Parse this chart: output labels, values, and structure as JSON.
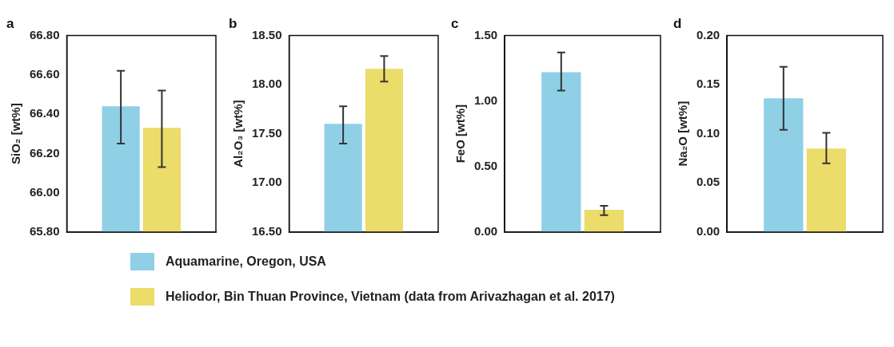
{
  "chart_data": [
    {
      "type": "bar",
      "title": "a",
      "ylabel": "SiO₂ [wt%]",
      "categories": [
        null
      ],
      "legend": "bottom",
      "ylim": [
        65.8,
        66.8
      ],
      "yticks": [
        {
          "value": 65.8,
          "label": "65.80"
        },
        {
          "value": 66,
          "label": "66.00"
        },
        {
          "value": 66.2,
          "label": "66.20"
        },
        {
          "value": 66.4,
          "label": "66.40"
        },
        {
          "value": 66.6,
          "label": "66.60"
        },
        {
          "value": 66.8,
          "label": "66.80"
        }
      ],
      "grid": false,
      "series": [
        {
          "name": "Aquamarine, Oregon, USA",
          "color": "#8fd0e6",
          "values": [
            66.44
          ],
          "errors": [
            [
              66.25,
              66.62
            ]
          ]
        },
        {
          "name": "Heliodor, Bin Thuan Province, Vietnam (data from Arivazhagan et al. 2017)",
          "color": "#ecdc6a",
          "values": [
            66.33
          ],
          "errors": [
            [
              66.13,
              66.52
            ]
          ]
        }
      ]
    },
    {
      "type": "bar",
      "title": "b",
      "ylabel": "Al₂O₃ [wt%]",
      "categories": [
        null
      ],
      "ylim": [
        16.5,
        18.5
      ],
      "yticks": [
        {
          "value": 16.5,
          "label": "16.50"
        },
        {
          "value": 17,
          "label": "17.00"
        },
        {
          "value": 17.5,
          "label": "17.50"
        },
        {
          "value": 18,
          "label": "18.00"
        },
        {
          "value": 18.5,
          "label": "18.50"
        }
      ],
      "grid": false,
      "series": [
        {
          "color": "#8fd0e6",
          "values": [
            17.6
          ],
          "errors": [
            [
              17.4,
              17.78
            ]
          ]
        },
        {
          "color": "#ecdc6a",
          "values": [
            18.16
          ],
          "errors": [
            [
              18.03,
              18.29
            ]
          ]
        }
      ]
    },
    {
      "type": "bar",
      "title": "c",
      "ylabel": "FeO [wt%]",
      "categories": [
        null
      ],
      "ylim": [
        0,
        1.5
      ],
      "yticks": [
        {
          "value": 0,
          "label": "0.00"
        },
        {
          "value": 0.5,
          "label": "0.50"
        },
        {
          "value": 1,
          "label": "1.00"
        },
        {
          "value": 1.5,
          "label": "1.50"
        }
      ],
      "grid": false,
      "series": [
        {
          "color": "#8fd0e6",
          "values": [
            1.22
          ],
          "errors": [
            [
              1.08,
              1.37
            ]
          ]
        },
        {
          "color": "#ecdc6a",
          "values": [
            0.17
          ],
          "errors": [
            [
              0.13,
              0.2
            ]
          ]
        }
      ]
    },
    {
      "type": "bar",
      "title": "d",
      "ylabel": "Na₂O [wt%]",
      "categories": [
        null
      ],
      "ylim": [
        0,
        0.2
      ],
      "yticks": [
        {
          "value": 0,
          "label": "0.00"
        },
        {
          "value": 0.05,
          "label": "0.05"
        },
        {
          "value": 0.1,
          "label": "0.10"
        },
        {
          "value": 0.15,
          "label": "0.15"
        },
        {
          "value": 0.2,
          "label": "0.20"
        }
      ],
      "grid": false,
      "series": [
        {
          "color": "#8fd0e6",
          "values": [
            0.136
          ],
          "errors": [
            [
              0.104,
              0.168
            ]
          ]
        },
        {
          "color": "#ecdc6a",
          "values": [
            0.085
          ],
          "errors": [
            [
              0.07,
              0.101
            ]
          ]
        }
      ]
    }
  ]
}
